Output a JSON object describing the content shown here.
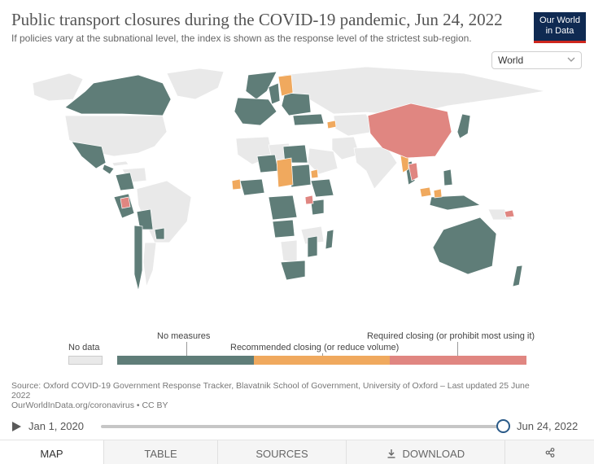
{
  "header": {
    "title": "Public transport closures during the COVID-19 pandemic, Jun 24, 2022",
    "subtitle": "If policies vary at the subnational level, the index is shown as the response level of the strictest sub-region.",
    "logo_line1": "Our World",
    "logo_line2": "in Data"
  },
  "region_select": {
    "value": "World"
  },
  "legend": {
    "no_data": "No data",
    "no_measures": "No measures",
    "recommended": "Recommended closing (or reduce volume)",
    "required": "Required closing (or prohibit most using it)"
  },
  "colors": {
    "no_data": "#e9e9e9",
    "no_measures": "#5f7d78",
    "recommended": "#f0a95e",
    "required": "#e08681",
    "ocean": "#ffffff",
    "brand": "#0f2a52",
    "brand_accent": "#ce261e"
  },
  "map_data": {
    "title": "Public transport closures during the COVID-19 pandemic, Jun 24, 2022",
    "date": "Jun 24, 2022",
    "categories": [
      "No data",
      "No measures",
      "Recommended closing (or reduce volume)",
      "Required closing (or prohibit most using it)"
    ],
    "regions": [
      {
        "name": "Canada",
        "category": "No measures"
      },
      {
        "name": "United States",
        "category": "No data"
      },
      {
        "name": "Greenland",
        "category": "No data"
      },
      {
        "name": "Mexico",
        "category": "No measures"
      },
      {
        "name": "Colombia",
        "category": "No measures"
      },
      {
        "name": "Ecuador",
        "category": "Required closing (or prohibit most using it)"
      },
      {
        "name": "Brazil",
        "category": "No data"
      },
      {
        "name": "Bolivia",
        "category": "No measures"
      },
      {
        "name": "Argentina",
        "category": "No data"
      },
      {
        "name": "Chile",
        "category": "No measures"
      },
      {
        "name": "Norway",
        "category": "No measures"
      },
      {
        "name": "Sweden",
        "category": "No measures"
      },
      {
        "name": "Finland",
        "category": "Recommended closing (or reduce volume)"
      },
      {
        "name": "Russia",
        "category": "No data"
      },
      {
        "name": "Azerbaijan",
        "category": "Recommended closing (or reduce volume)"
      },
      {
        "name": "China",
        "category": "Required closing (or prohibit most using it)"
      },
      {
        "name": "Myanmar",
        "category": "Recommended closing (or reduce volume)"
      },
      {
        "name": "Thailand",
        "category": "Required closing (or prohibit most using it)"
      },
      {
        "name": "Japan",
        "category": "No measures"
      },
      {
        "name": "Chad",
        "category": "Recommended closing (or reduce volume)"
      },
      {
        "name": "Uganda",
        "category": "Required closing (or prohibit most using it)"
      },
      {
        "name": "Australia",
        "category": "No measures"
      },
      {
        "name": "New Zealand",
        "category": "No measures"
      }
    ]
  },
  "source": {
    "line1": "Source: Oxford COVID-19 Government Response Tracker, Blavatnik School of Government, University of Oxford – Last updated 25 June",
    "line2": "2022",
    "line3": "OurWorldInData.org/coronavirus • CC BY"
  },
  "timeline": {
    "start_label": "Jan 1, 2020",
    "end_label": "Jun 24, 2022",
    "position": 1.0
  },
  "tabs": [
    {
      "label": "MAP",
      "icon": "none"
    },
    {
      "label": "TABLE",
      "icon": "none"
    },
    {
      "label": "SOURCES",
      "icon": "none"
    },
    {
      "label": "DOWNLOAD",
      "icon": "download-icon"
    },
    {
      "label": "",
      "icon": "share-icon"
    }
  ]
}
